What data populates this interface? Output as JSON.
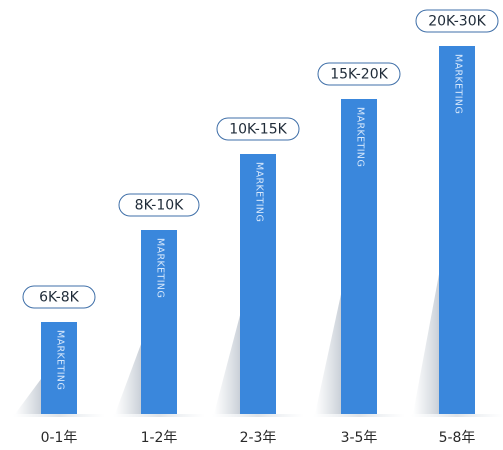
{
  "chart_data": {
    "type": "bar",
    "categories": [
      "0-1年",
      "1-2年",
      "2-3年",
      "3-5年",
      "5-8年"
    ],
    "value_labels": [
      "6K-8K",
      "8K-10K",
      "10K-15K",
      "15K-20K",
      "20K-30K"
    ],
    "bar_text": "MARKETING",
    "ranges": [
      [
        6,
        8
      ],
      [
        8,
        10
      ],
      [
        10,
        15
      ],
      [
        15,
        20
      ],
      [
        20,
        30
      ]
    ],
    "grid": false,
    "legend": "none",
    "colors": {
      "bar": "#3a87dc",
      "bar_text": "#d6e7fb",
      "label_border": "#3f6fa8",
      "label_text": "#1f2b38",
      "category_text": "#2a2a2a",
      "shadow": "#c8ced6"
    }
  }
}
